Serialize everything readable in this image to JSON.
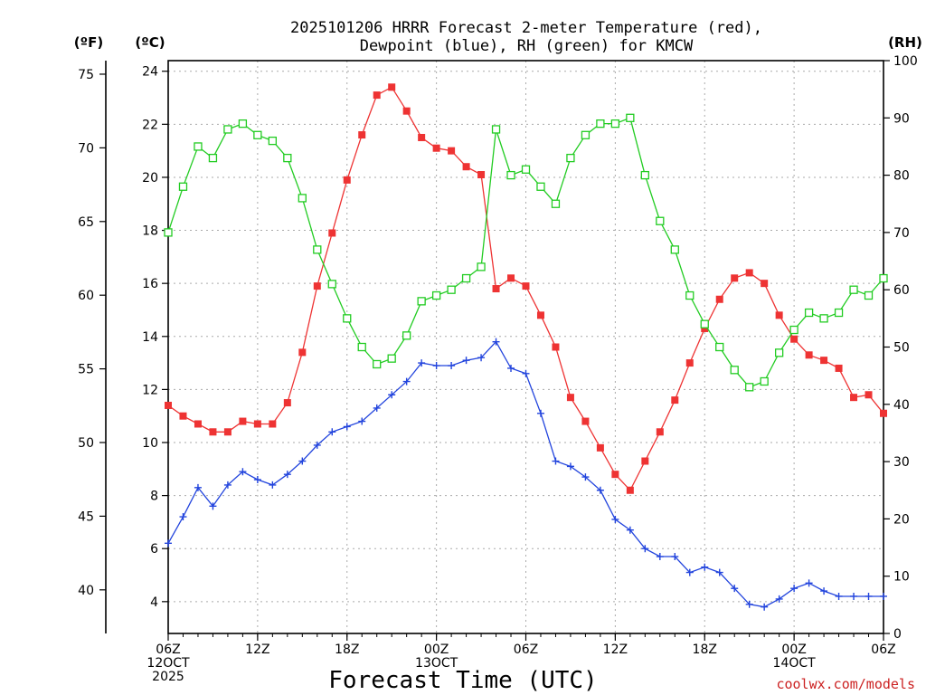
{
  "chart_data": {
    "type": "line",
    "title_line1": "2025101206 HRRR Forecast 2-meter Temperature (red),",
    "title_line2": "Dewpoint (blue), RH (green) for KMCW",
    "xlabel": "Forecast Time (UTC)",
    "credit": "coolwx.com/models",
    "units": {
      "fahrenheit": "(ºF)",
      "celsius": "(ºC)",
      "rh": "(RH)"
    },
    "x_hours": [
      0,
      1,
      2,
      3,
      4,
      5,
      6,
      7,
      8,
      9,
      10,
      11,
      12,
      13,
      14,
      15,
      16,
      17,
      18,
      19,
      20,
      21,
      22,
      23,
      24,
      25,
      26,
      27,
      28,
      29,
      30,
      31,
      32,
      33,
      34,
      35,
      36,
      37,
      38,
      39,
      40,
      41,
      42,
      43,
      44,
      45,
      46,
      47,
      48
    ],
    "xlim": [
      0,
      48
    ],
    "x_ticks": [
      {
        "hour": 0,
        "lines": [
          "06Z",
          "12OCT",
          "2025"
        ]
      },
      {
        "hour": 6,
        "lines": [
          "12Z"
        ]
      },
      {
        "hour": 12,
        "lines": [
          "18Z"
        ]
      },
      {
        "hour": 18,
        "lines": [
          "00Z",
          "13OCT"
        ]
      },
      {
        "hour": 24,
        "lines": [
          "06Z"
        ]
      },
      {
        "hour": 30,
        "lines": [
          "12Z"
        ]
      },
      {
        "hour": 36,
        "lines": [
          "18Z"
        ]
      },
      {
        "hour": 42,
        "lines": [
          "00Z",
          "14OCT"
        ]
      },
      {
        "hour": 48,
        "lines": [
          "06Z"
        ]
      }
    ],
    "y_celsius": {
      "lim": [
        2.8,
        24.4
      ],
      "ticks": [
        "4",
        "6",
        "8",
        "10",
        "12",
        "14",
        "16",
        "18",
        "20",
        "22",
        "24"
      ]
    },
    "y_fahrenheit": {
      "ticks": [
        "40",
        "45",
        "50",
        "55",
        "60",
        "65",
        "70",
        "75"
      ]
    },
    "y_rh": {
      "lim": [
        0,
        100
      ],
      "ticks": [
        "0",
        "10",
        "20",
        "30",
        "40",
        "50",
        "60",
        "70",
        "80",
        "90",
        "100"
      ]
    },
    "series": [
      {
        "name": "2-meter Temperature",
        "axis": "celsius",
        "color": "#ee3333",
        "marker": "filled-square",
        "values": [
          11.4,
          11.0,
          10.7,
          10.4,
          10.4,
          10.8,
          10.7,
          10.7,
          11.5,
          13.4,
          15.9,
          17.9,
          19.9,
          21.6,
          23.1,
          23.4,
          22.5,
          21.5,
          21.1,
          21.0,
          20.4,
          20.1,
          15.8,
          16.2,
          15.9,
          14.8,
          13.6,
          11.7,
          10.8,
          9.8,
          8.8,
          8.2,
          9.3,
          10.4,
          11.6,
          13.0,
          14.3,
          15.4,
          16.2,
          16.4,
          16.0,
          14.8,
          13.9,
          13.3,
          13.1,
          12.8,
          11.7,
          11.8,
          11.1
        ]
      },
      {
        "name": "Dewpoint",
        "axis": "celsius",
        "color": "#2244dd",
        "marker": "plus",
        "values": [
          6.2,
          7.2,
          8.3,
          7.6,
          8.4,
          8.9,
          8.6,
          8.4,
          8.8,
          9.3,
          9.9,
          10.4,
          10.6,
          10.8,
          11.3,
          11.8,
          12.3,
          13.0,
          12.9,
          12.9,
          13.1,
          13.2,
          13.8,
          12.8,
          12.6,
          11.1,
          9.3,
          9.1,
          8.7,
          8.2,
          7.1,
          6.7,
          6.0,
          5.7,
          5.7,
          5.1,
          5.3,
          5.1,
          4.5,
          3.9,
          3.8,
          4.1,
          4.5,
          4.7,
          4.4,
          4.2,
          4.2,
          4.2,
          4.2
        ]
      },
      {
        "name": "RH",
        "axis": "rh",
        "color": "#22cc22",
        "marker": "open-square",
        "values": [
          70,
          78,
          85,
          83,
          88,
          89,
          87,
          86,
          83,
          76,
          67,
          61,
          55,
          50,
          47,
          48,
          52,
          58,
          59,
          60,
          62,
          64,
          88,
          80,
          81,
          78,
          75,
          83,
          87,
          89,
          89,
          90,
          80,
          72,
          67,
          59,
          54,
          50,
          46,
          43,
          44,
          49,
          53,
          56,
          55,
          56,
          60,
          59,
          62
        ]
      }
    ]
  }
}
